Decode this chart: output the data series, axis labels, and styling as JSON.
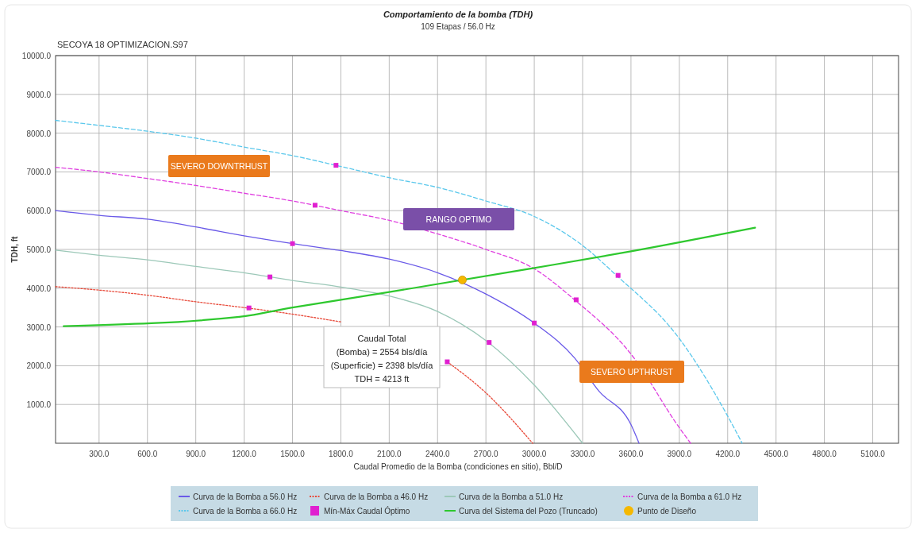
{
  "chart_data": {
    "type": "line",
    "title": "Comportamiento de la bomba (TDH)",
    "subtitle": "109 Etapas / 56.0 Hz",
    "xlabel": "Caudal Promedio de la Bomba (condiciones en sitio), Bbl/D",
    "ylabel": "TDH, ft",
    "xlim": [
      30,
      5260
    ],
    "xticks": [
      {
        "value": 300,
        "label": "300.0"
      },
      {
        "value": 600,
        "label": "600.0"
      },
      {
        "value": 900,
        "label": "900.0"
      },
      {
        "value": 1200,
        "label": "1200.0"
      },
      {
        "value": 1500,
        "label": "1500.0"
      },
      {
        "value": 1800,
        "label": "1800.0"
      },
      {
        "value": 2100,
        "label": "2100.0"
      },
      {
        "value": 2400,
        "label": "2400.0"
      },
      {
        "value": 2700,
        "label": "2700.0"
      },
      {
        "value": 3000,
        "label": "3000.0"
      },
      {
        "value": 3300,
        "label": "3300.0"
      },
      {
        "value": 3600,
        "label": "3600.0"
      },
      {
        "value": 3900,
        "label": "3900.0"
      },
      {
        "value": 4200,
        "label": "4200.0"
      },
      {
        "value": 4500,
        "label": "4500.0"
      },
      {
        "value": 4800,
        "label": "4800.0"
      },
      {
        "value": 5100,
        "label": "5100.0"
      }
    ],
    "ylim": [
      0,
      10000
    ],
    "yticks": [
      {
        "value": 1000,
        "label": "1000.0"
      },
      {
        "value": 2000,
        "label": "2000.0"
      },
      {
        "value": 3000,
        "label": "3000.0"
      },
      {
        "value": 4000,
        "label": "4000.0"
      },
      {
        "value": 5000,
        "label": "5000.0"
      },
      {
        "value": 6000,
        "label": "6000.0"
      },
      {
        "value": 7000,
        "label": "7000.0"
      },
      {
        "value": 8000,
        "label": "8000.0"
      },
      {
        "value": 9000,
        "label": "9000.0"
      },
      {
        "value": 10000,
        "label": "10000.0"
      }
    ],
    "grid": true,
    "legend": "bottom",
    "annotations": [
      "SECOYA 18 OPTIMIZACION.S97",
      "SEVERO DOWNTRHUST",
      "RANGO OPTIMO",
      "SEVERO UPTHRUST",
      "Caudal Total\n(Bomba) = 2554 bls/día\n(Superficie) = 2398 bls/día\nTDH = 4213 ft"
    ],
    "series": [
      {
        "name": "Curva de la Bomba a 56.0 Hz",
        "color": "#6a5ae8",
        "line_style": "solid",
        "x": [
          30,
          300,
          600,
          900,
          1200,
          1500,
          1800,
          2100,
          2400,
          2700,
          3000,
          3250,
          3400,
          3600,
          3650
        ],
        "values": [
          6000,
          5880,
          5780,
          5580,
          5350,
          5150,
          4970,
          4750,
          4400,
          3850,
          3100,
          2200,
          1350,
          480,
          0
        ]
      },
      {
        "name": "Curva de la Bomba a 46.0 Hz",
        "color": "#e84a3a",
        "line_style": "dotted",
        "x": [
          30,
          300,
          600,
          900,
          1200,
          1500,
          1800,
          1950,
          2100,
          2400,
          2460,
          2700,
          2990
        ],
        "values": [
          4040,
          3950,
          3820,
          3650,
          3500,
          3330,
          3130,
          null,
          null,
          null,
          2100,
          1300,
          0
        ]
      },
      {
        "name": "Curva de la Bomba a 51.0 Hz",
        "color": "#9cc8b8",
        "line_style": "solid",
        "x": [
          30,
          300,
          600,
          900,
          1200,
          1500,
          1800,
          2100,
          2400,
          2700,
          3000,
          3300
        ],
        "values": [
          4980,
          4850,
          4730,
          4560,
          4400,
          4200,
          4030,
          3800,
          3400,
          2650,
          1500,
          0
        ]
      },
      {
        "name": "Curva de la Bomba a 61.0 Hz",
        "color": "#e040e0",
        "line_style": "dashed",
        "x": [
          30,
          300,
          600,
          900,
          1200,
          1500,
          1800,
          2100,
          2400,
          2700,
          3000,
          3250,
          3600,
          3900,
          3970
        ],
        "values": [
          7120,
          7000,
          6830,
          6650,
          6450,
          6250,
          6000,
          5750,
          5400,
          5000,
          4500,
          3700,
          2300,
          400,
          0
        ]
      },
      {
        "name": "Curva de la Bomba a 66.0 Hz",
        "color": "#5bc8ec",
        "line_style": "dashed",
        "x": [
          30,
          300,
          600,
          900,
          1200,
          1500,
          1800,
          2100,
          2400,
          2700,
          3000,
          3300,
          3510,
          3900,
          4200,
          4290
        ],
        "values": [
          8330,
          8200,
          8050,
          7870,
          7640,
          7420,
          7140,
          6850,
          6600,
          6250,
          5850,
          5100,
          4330,
          2700,
          700,
          0
        ]
      },
      {
        "name": "Mín-Máx Caudal Óptimo",
        "type": "scatter",
        "marker": "square",
        "color": "#e020d0",
        "x": [
          1230,
          2460,
          1360,
          2720,
          1500,
          3000,
          1640,
          3260,
          1770,
          3520
        ],
        "values": [
          3490,
          2100,
          4290,
          2600,
          5150,
          3100,
          6140,
          3700,
          7170,
          4330
        ]
      },
      {
        "name": "Curva del Sistema del Pozo (Truncado)",
        "color": "#2ec82e",
        "line_style": "solid",
        "x": [
          80,
          1170,
          1500,
          2100,
          3000,
          3600,
          4370
        ],
        "values": [
          3020,
          3260,
          3500,
          3900,
          4520,
          4950,
          5560
        ]
      },
      {
        "name": "Punto de Diseño",
        "type": "scatter",
        "marker": "circle",
        "color": "#f5b800",
        "x": [
          2554
        ],
        "values": [
          4213
        ]
      }
    ]
  }
}
